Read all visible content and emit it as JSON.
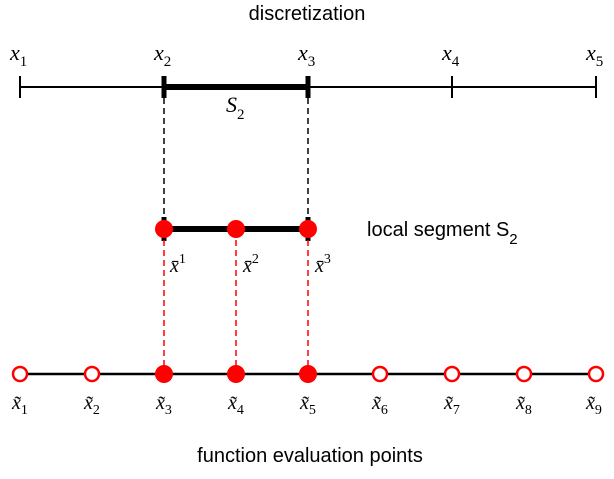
{
  "title": "discretization",
  "top_axis": {
    "nodes": [
      {
        "base": "x",
        "sub": "1"
      },
      {
        "base": "x",
        "sub": "2"
      },
      {
        "base": "x",
        "sub": "3"
      },
      {
        "base": "x",
        "sub": "4"
      },
      {
        "base": "x",
        "sub": "5"
      }
    ],
    "segment_label": {
      "base": "S",
      "sub": "2"
    }
  },
  "local_segment": {
    "label": "local segment S",
    "label_sub": "2",
    "points": [
      {
        "base": "x̄",
        "sup": "1"
      },
      {
        "base": "x̄",
        "sup": "2"
      },
      {
        "base": "x̄",
        "sup": "3"
      }
    ]
  },
  "bottom_axis": {
    "caption": "function evaluation points",
    "points": [
      {
        "base": "x̃",
        "sub": "1",
        "filled": false
      },
      {
        "base": "x̃",
        "sub": "2",
        "filled": false
      },
      {
        "base": "x̃",
        "sub": "3",
        "filled": true
      },
      {
        "base": "x̃",
        "sub": "4",
        "filled": true
      },
      {
        "base": "x̃",
        "sub": "5",
        "filled": true
      },
      {
        "base": "x̃",
        "sub": "6",
        "filled": false
      },
      {
        "base": "x̃",
        "sub": "7",
        "filled": false
      },
      {
        "base": "x̃",
        "sub": "8",
        "filled": false
      },
      {
        "base": "x̃",
        "sub": "9",
        "filled": false
      }
    ]
  },
  "colors": {
    "line": "#000000",
    "accent": "#ff0000",
    "background": "#ffffff"
  }
}
